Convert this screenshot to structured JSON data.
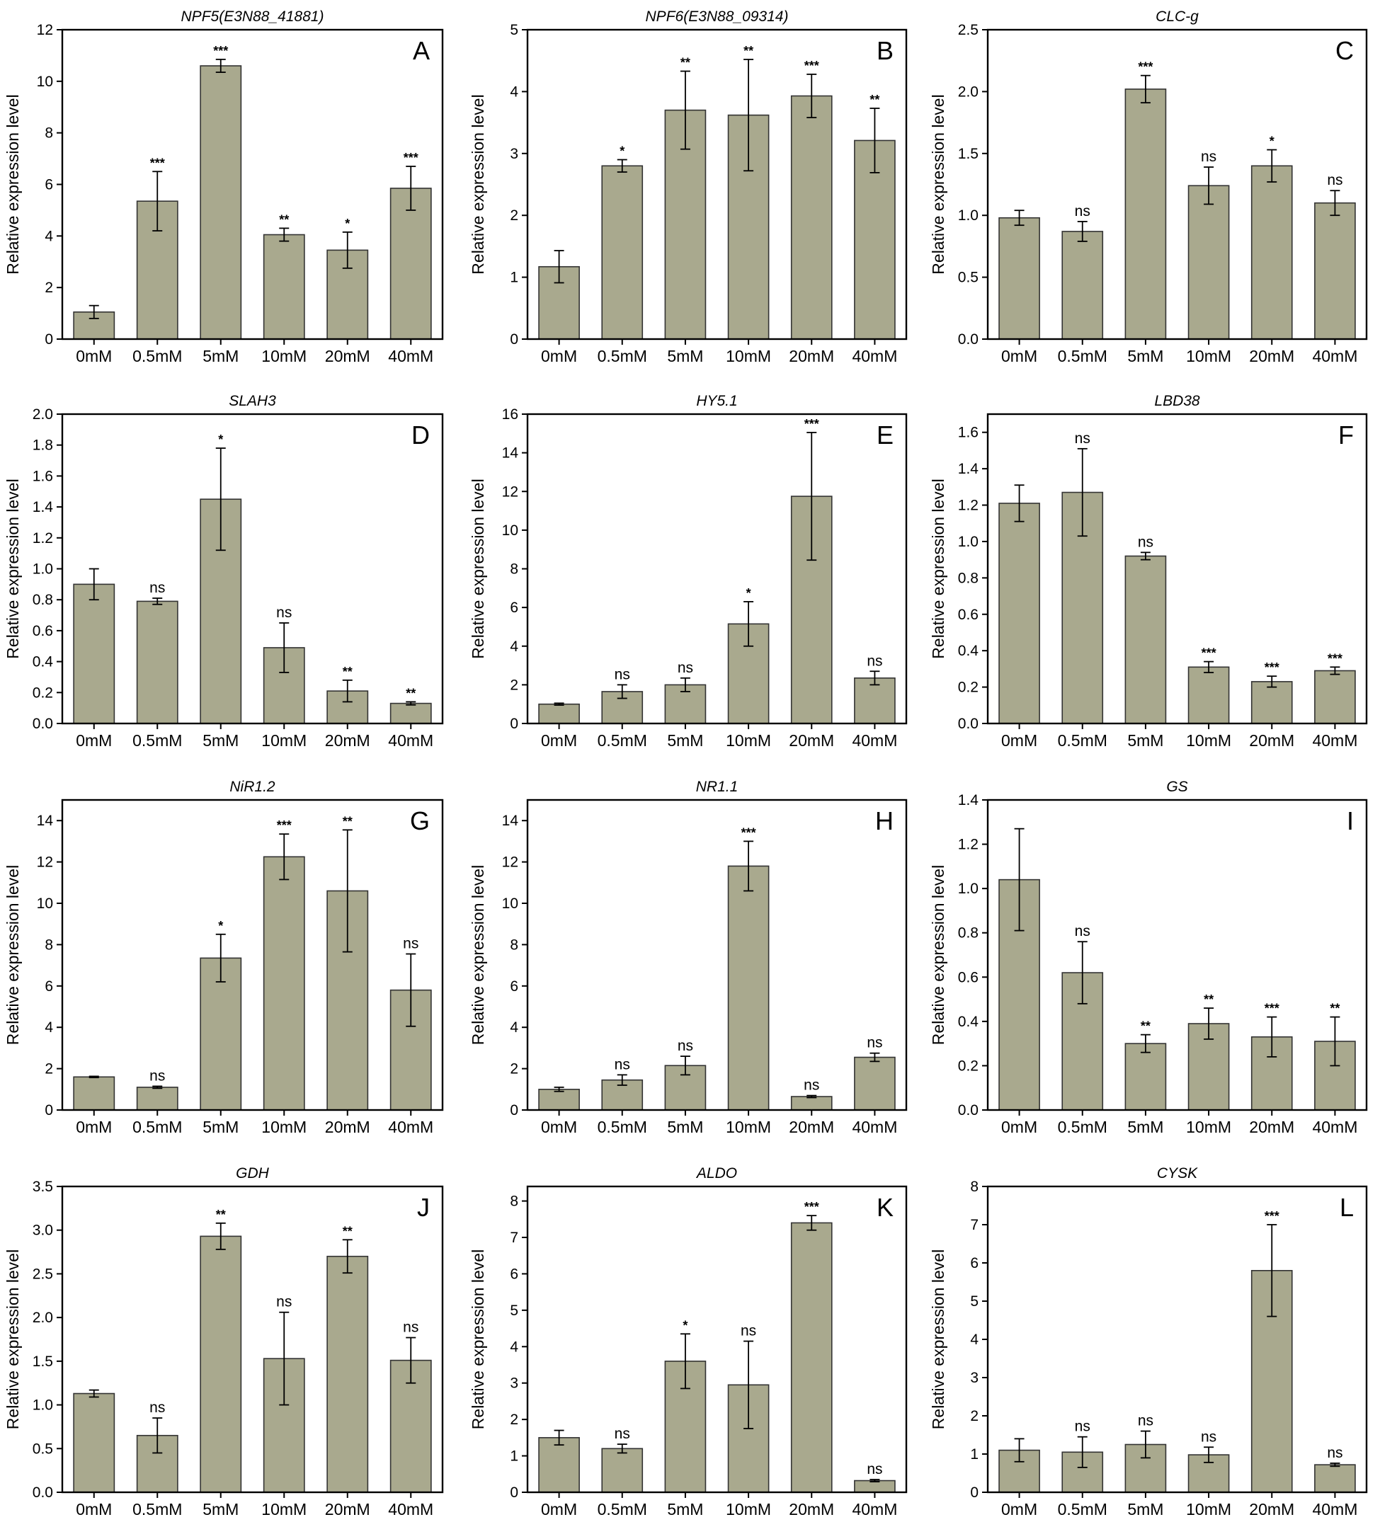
{
  "figure": {
    "y_axis_label": "Relative expression level",
    "colors": {
      "bar": "#a9a98e",
      "axis": "#000000"
    }
  },
  "chart_data": [
    {
      "panel": "A",
      "title": "NPF5(E3N88_41881)",
      "type": "bar",
      "categories": [
        "0mM",
        "0.5mM",
        "5mM",
        "10mM",
        "20mM",
        "40mM"
      ],
      "values": [
        1.05,
        5.35,
        10.6,
        4.05,
        3.45,
        5.85
      ],
      "errors": [
        0.25,
        1.15,
        0.25,
        0.25,
        0.7,
        0.85
      ],
      "significance": [
        "",
        "***",
        "***",
        "**",
        "*",
        "***"
      ],
      "ylim": [
        0,
        12
      ],
      "yticks": [
        "0",
        "2",
        "4",
        "6",
        "8",
        "10",
        "12"
      ],
      "ylabel": "Relative expression level"
    },
    {
      "panel": "B",
      "title": "NPF6(E3N88_09314)",
      "type": "bar",
      "categories": [
        "0mM",
        "0.5mM",
        "5mM",
        "10mM",
        "20mM",
        "40mM"
      ],
      "values": [
        1.17,
        2.8,
        3.7,
        3.62,
        3.93,
        3.21
      ],
      "errors": [
        0.26,
        0.1,
        0.63,
        0.9,
        0.35,
        0.52
      ],
      "significance": [
        "",
        "*",
        "**",
        "**",
        "***",
        "**"
      ],
      "ylim": [
        0,
        5
      ],
      "yticks": [
        "0",
        "1",
        "2",
        "3",
        "4",
        "5"
      ],
      "ylabel": "Relative expression level"
    },
    {
      "panel": "C",
      "title": "CLC-g",
      "type": "bar",
      "categories": [
        "0mM",
        "0.5mM",
        "5mM",
        "10mM",
        "20mM",
        "40mM"
      ],
      "values": [
        0.98,
        0.87,
        2.02,
        1.24,
        1.4,
        1.1
      ],
      "errors": [
        0.06,
        0.08,
        0.11,
        0.15,
        0.13,
        0.1
      ],
      "significance": [
        "",
        "ns",
        "***",
        "ns",
        "*",
        "ns"
      ],
      "ylim": [
        0,
        2.5
      ],
      "yticks": [
        "0.0",
        "0.5",
        "1.0",
        "1.5",
        "2.0",
        "2.5"
      ],
      "ylabel": "Relative expression level"
    },
    {
      "panel": "D",
      "title": "SLAH3",
      "type": "bar",
      "categories": [
        "0mM",
        "0.5mM",
        "5mM",
        "10mM",
        "20mM",
        "40mM"
      ],
      "values": [
        0.9,
        0.79,
        1.45,
        0.49,
        0.21,
        0.13
      ],
      "errors": [
        0.1,
        0.02,
        0.33,
        0.16,
        0.07,
        0.01
      ],
      "significance": [
        "",
        "ns",
        "*",
        "ns",
        "**",
        "**"
      ],
      "ylim": [
        0,
        2.0
      ],
      "yticks": [
        "0.0",
        "0.2",
        "0.4",
        "0.6",
        "0.8",
        "1.0",
        "1.2",
        "1.4",
        "1.6",
        "1.8",
        "2.0"
      ],
      "ylabel": "Relative expression level"
    },
    {
      "panel": "E",
      "title": "HY5.1",
      "type": "bar",
      "categories": [
        "0mM",
        "0.5mM",
        "5mM",
        "10mM",
        "20mM",
        "40mM"
      ],
      "values": [
        1.0,
        1.65,
        2.0,
        5.15,
        11.75,
        2.35
      ],
      "errors": [
        0.05,
        0.35,
        0.35,
        1.15,
        3.3,
        0.35
      ],
      "significance": [
        "",
        "ns",
        "ns",
        "*",
        "***",
        "ns"
      ],
      "ylim": [
        0,
        16
      ],
      "yticks": [
        "0",
        "2",
        "4",
        "6",
        "8",
        "10",
        "12",
        "14",
        "16"
      ],
      "ylabel": "Relative expression level"
    },
    {
      "panel": "F",
      "title": "LBD38",
      "type": "bar",
      "categories": [
        "0mM",
        "0.5mM",
        "5mM",
        "10mM",
        "20mM",
        "40mM"
      ],
      "values": [
        1.21,
        1.27,
        0.92,
        0.31,
        0.23,
        0.29
      ],
      "errors": [
        0.1,
        0.24,
        0.02,
        0.03,
        0.03,
        0.02
      ],
      "significance": [
        "",
        "ns",
        "ns",
        "***",
        "***",
        "***"
      ],
      "ylim": [
        0,
        1.7
      ],
      "yticks": [
        "0.0",
        "0.2",
        "0.4",
        "0.6",
        "0.8",
        "1.0",
        "1.2",
        "1.4",
        "1.6"
      ],
      "ylabel": "Relative expression level"
    },
    {
      "panel": "G",
      "title": "NiR1.2",
      "type": "bar",
      "categories": [
        "0mM",
        "0.5mM",
        "5mM",
        "10mM",
        "20mM",
        "40mM"
      ],
      "values": [
        1.6,
        1.1,
        7.35,
        12.25,
        10.6,
        5.8
      ],
      "errors": [
        0.03,
        0.05,
        1.15,
        1.1,
        2.95,
        1.75
      ],
      "significance": [
        "",
        "ns",
        "*",
        "***",
        "**",
        "ns"
      ],
      "ylim": [
        0,
        15
      ],
      "yticks": [
        "0",
        "2",
        "4",
        "6",
        "8",
        "10",
        "12",
        "14"
      ],
      "ylabel": "Relative expression level"
    },
    {
      "panel": "H",
      "title": "NR1.1",
      "type": "bar",
      "categories": [
        "0mM",
        "0.5mM",
        "5mM",
        "10mM",
        "20mM",
        "40mM"
      ],
      "values": [
        1.0,
        1.45,
        2.15,
        11.8,
        0.65,
        2.55
      ],
      "errors": [
        0.1,
        0.25,
        0.45,
        1.2,
        0.05,
        0.2
      ],
      "significance": [
        "",
        "ns",
        "ns",
        "***",
        "ns",
        "ns"
      ],
      "ylim": [
        0,
        15
      ],
      "yticks": [
        "0",
        "2",
        "4",
        "6",
        "8",
        "10",
        "12",
        "14"
      ],
      "ylabel": "Relative expression level"
    },
    {
      "panel": "I",
      "title": "GS",
      "type": "bar",
      "categories": [
        "0mM",
        "0.5mM",
        "5mM",
        "10mM",
        "20mM",
        "40mM"
      ],
      "values": [
        1.04,
        0.62,
        0.3,
        0.39,
        0.33,
        0.31
      ],
      "errors": [
        0.23,
        0.14,
        0.04,
        0.07,
        0.09,
        0.11
      ],
      "significance": [
        "",
        "ns",
        "**",
        "**",
        "***",
        "**"
      ],
      "ylim": [
        0,
        1.4
      ],
      "yticks": [
        "0.0",
        "0.2",
        "0.4",
        "0.6",
        "0.8",
        "1.0",
        "1.2",
        "1.4"
      ],
      "ylabel": "Relative expression level"
    },
    {
      "panel": "J",
      "title": "GDH",
      "type": "bar",
      "categories": [
        "0mM",
        "0.5mM",
        "5mM",
        "10mM",
        "20mM",
        "40mM"
      ],
      "values": [
        1.13,
        0.65,
        2.93,
        1.53,
        2.7,
        1.51
      ],
      "errors": [
        0.04,
        0.2,
        0.15,
        0.53,
        0.19,
        0.26
      ],
      "significance": [
        "",
        "ns",
        "**",
        "ns",
        "**",
        "ns"
      ],
      "ylim": [
        0,
        3.5
      ],
      "yticks": [
        "0.0",
        "0.5",
        "1.0",
        "1.5",
        "2.0",
        "2.5",
        "3.0",
        "3.5"
      ],
      "ylabel": "Relative expression level"
    },
    {
      "panel": "K",
      "title": "ALDO",
      "type": "bar",
      "categories": [
        "0mM",
        "0.5mM",
        "5mM",
        "10mM",
        "20mM",
        "40mM"
      ],
      "values": [
        1.5,
        1.2,
        3.6,
        2.95,
        7.4,
        0.32
      ],
      "errors": [
        0.2,
        0.12,
        0.75,
        1.2,
        0.2,
        0.03
      ],
      "significance": [
        "",
        "ns",
        "*",
        "ns",
        "***",
        "ns"
      ],
      "ylim": [
        0,
        8.4
      ],
      "yticks": [
        "0",
        "1",
        "2",
        "3",
        "4",
        "5",
        "6",
        "7",
        "8"
      ],
      "ylabel": "Relative expression level"
    },
    {
      "panel": "L",
      "title": "CYSK",
      "type": "bar",
      "categories": [
        "0mM",
        "0.5mM",
        "5mM",
        "10mM",
        "20mM",
        "40mM"
      ],
      "values": [
        1.1,
        1.05,
        1.25,
        0.98,
        5.8,
        0.72
      ],
      "errors": [
        0.3,
        0.4,
        0.35,
        0.2,
        1.2,
        0.04
      ],
      "significance": [
        "",
        "ns",
        "ns",
        "ns",
        "***",
        "ns"
      ],
      "ylim": [
        0,
        8
      ],
      "yticks": [
        "0",
        "1",
        "2",
        "3",
        "4",
        "5",
        "6",
        "7",
        "8"
      ],
      "ylabel": "Relative expression level"
    }
  ]
}
